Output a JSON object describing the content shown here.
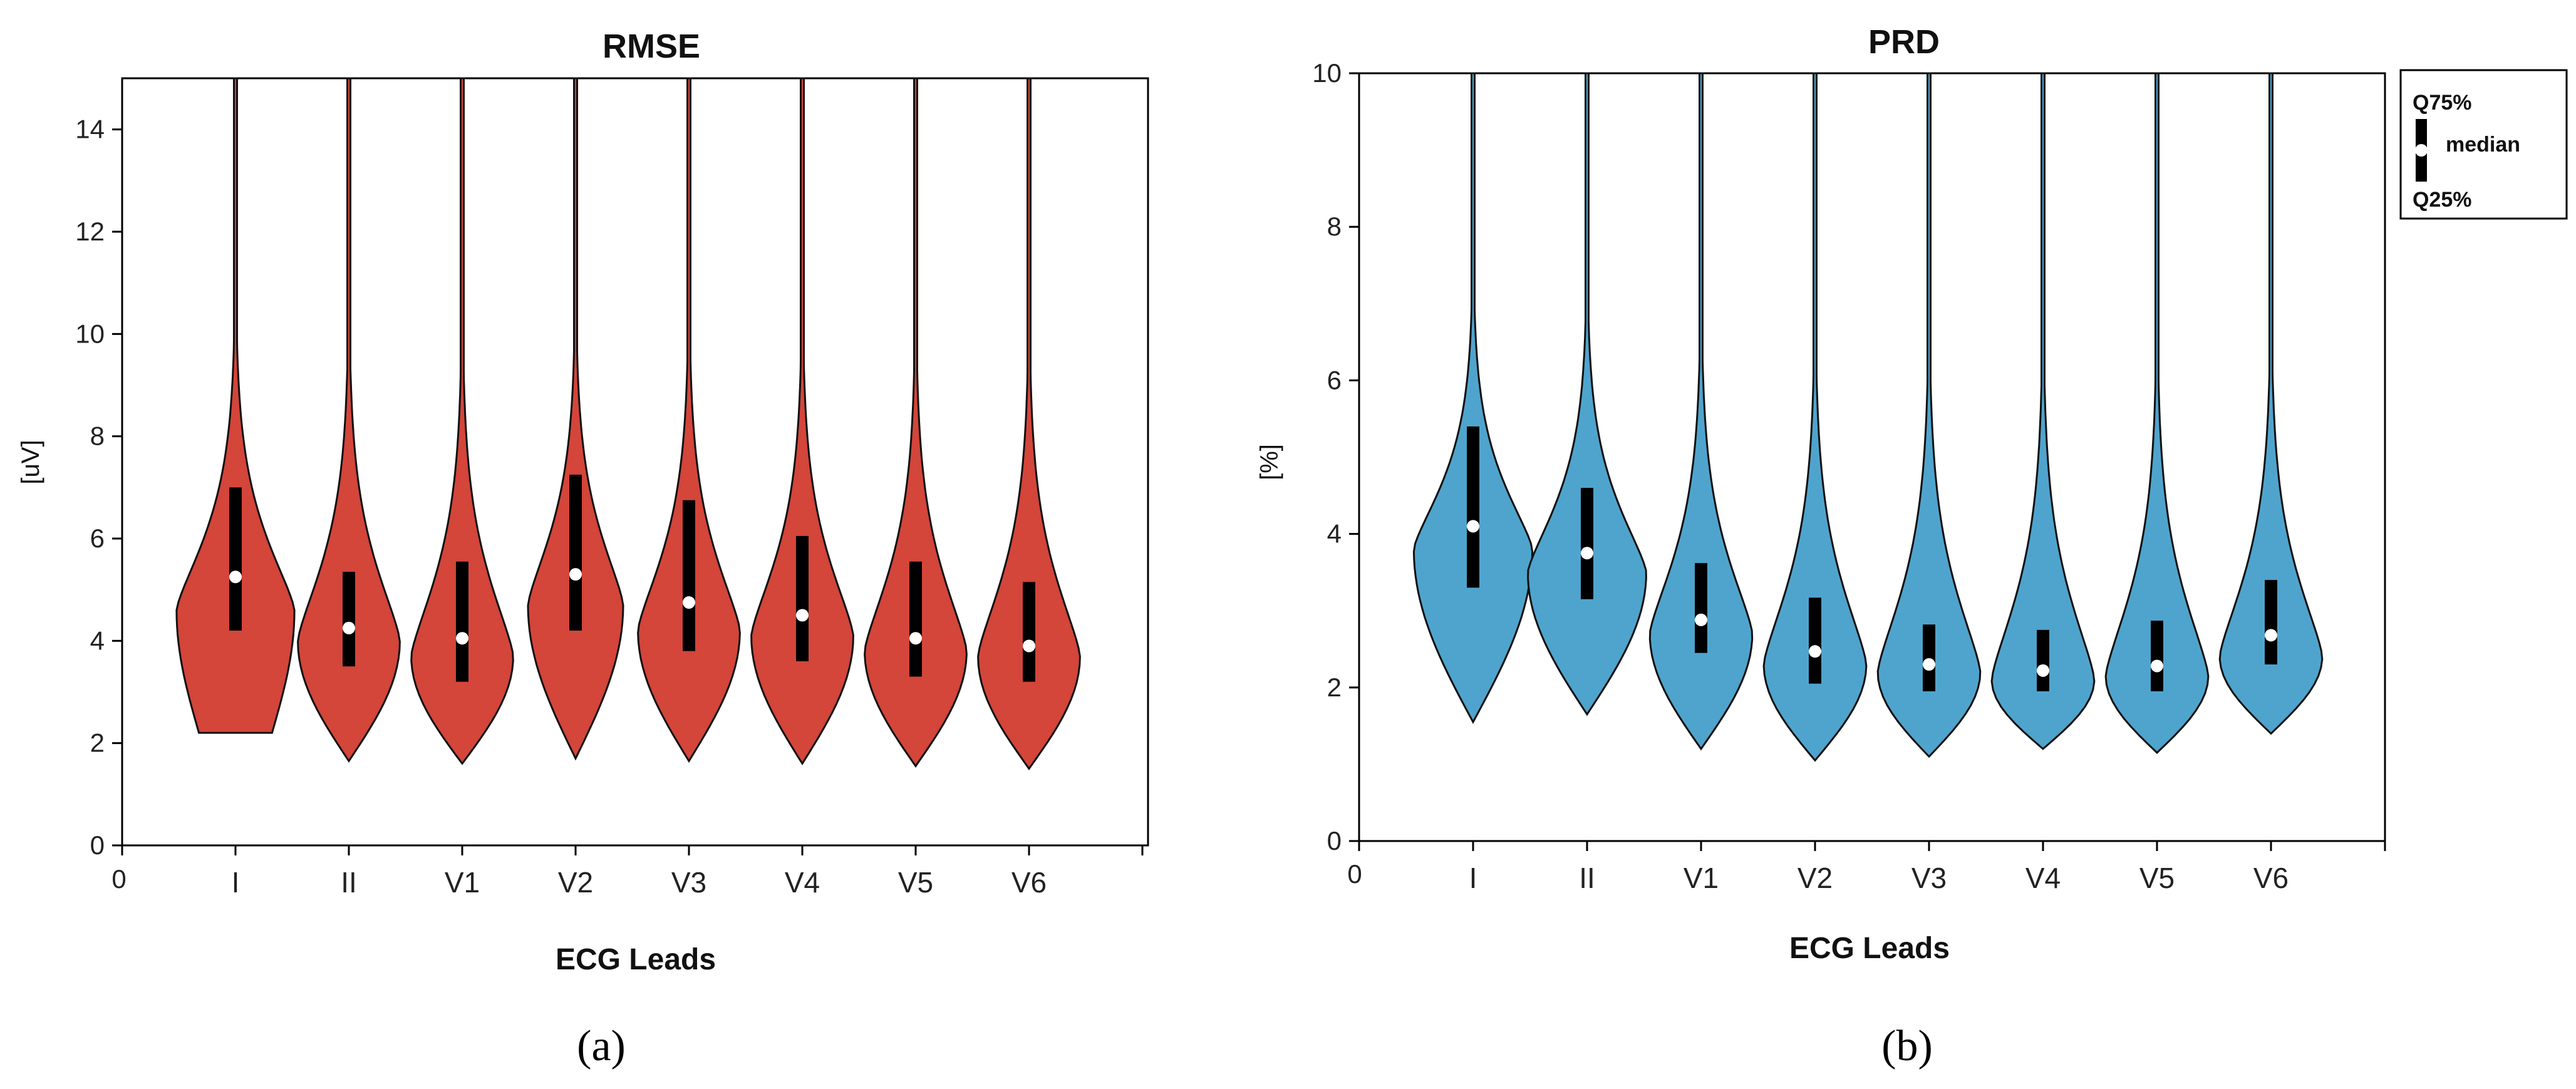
{
  "chart_data": [
    {
      "type": "violin",
      "panel_label": "(a)",
      "title": "RMSE",
      "xlabel": "ECG Leads",
      "ylabel": "[uV]",
      "ylim": [
        0,
        15
      ],
      "yticks": [
        0,
        2,
        4,
        6,
        8,
        10,
        12,
        14
      ],
      "x_origin_label": "0",
      "color": "#d4453a",
      "categories": [
        "I",
        "II",
        "V1",
        "V2",
        "V3",
        "V4",
        "V5",
        "V6"
      ],
      "q25": [
        4.2,
        3.5,
        3.2,
        4.2,
        3.8,
        3.6,
        3.3,
        3.2
      ],
      "median": [
        5.25,
        4.25,
        4.05,
        5.3,
        4.75,
        4.5,
        4.05,
        3.9
      ],
      "q75": [
        7.0,
        5.35,
        5.55,
        7.25,
        6.75,
        6.05,
        5.55,
        5.15
      ],
      "min": [
        2.2,
        1.65,
        1.6,
        1.7,
        1.65,
        1.6,
        1.55,
        1.5
      ],
      "max": [
        15,
        15,
        15,
        15,
        15,
        15,
        15,
        15
      ],
      "mode": [
        4.6,
        4.0,
        3.7,
        4.7,
        4.2,
        4.1,
        3.8,
        3.7
      ],
      "max_half_width": [
        0.52,
        0.45,
        0.45,
        0.42,
        0.45,
        0.45,
        0.45,
        0.45
      ]
    },
    {
      "type": "violin",
      "panel_label": "(b)",
      "title": "PRD",
      "xlabel": "ECG Leads",
      "ylabel": "[%]",
      "ylim": [
        0,
        10
      ],
      "yticks": [
        0,
        2,
        4,
        6,
        8,
        10
      ],
      "x_origin_label": "0",
      "color": "#4fa4cd",
      "categories": [
        "I",
        "II",
        "V1",
        "V2",
        "V3",
        "V4",
        "V5",
        "V6"
      ],
      "q25": [
        3.3,
        3.15,
        2.45,
        2.05,
        1.95,
        1.95,
        1.95,
        2.3
      ],
      "median": [
        4.1,
        3.75,
        2.88,
        2.47,
        2.3,
        2.22,
        2.28,
        2.68
      ],
      "q75": [
        5.4,
        4.6,
        3.62,
        3.17,
        2.82,
        2.75,
        2.87,
        3.4
      ],
      "min": [
        1.55,
        1.65,
        1.2,
        1.05,
        1.1,
        1.2,
        1.15,
        1.4
      ],
      "max": [
        10,
        10,
        10,
        10,
        10,
        10,
        10,
        10
      ],
      "mode": [
        3.8,
        3.5,
        2.7,
        2.3,
        2.2,
        2.1,
        2.15,
        2.4
      ],
      "max_half_width": [
        0.52,
        0.52,
        0.45,
        0.45,
        0.45,
        0.45,
        0.45,
        0.45
      ]
    }
  ],
  "legend": {
    "top_label": "Q75%",
    "middle_label": "median",
    "bottom_label": "Q25%"
  }
}
